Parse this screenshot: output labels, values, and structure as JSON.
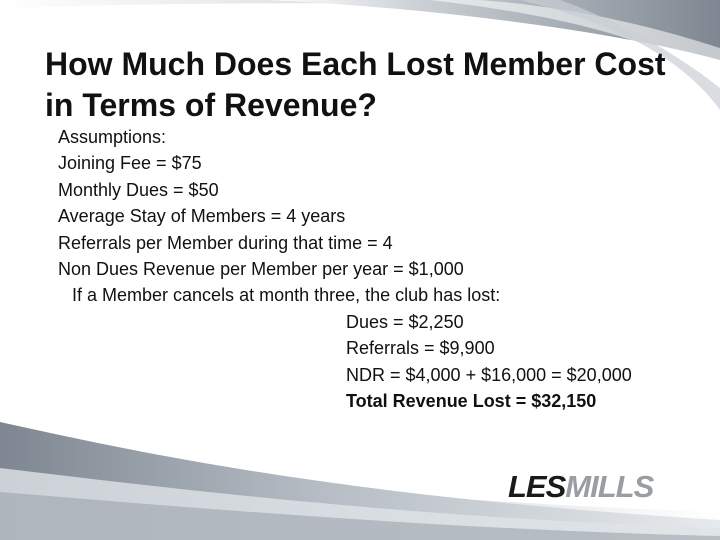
{
  "slide": {
    "title": "How Much Does Each Lost Member Cost in Terms of Revenue?",
    "assumptions_heading": "Assumptions:",
    "assumptions": [
      "Joining Fee = $75",
      "Monthly Dues = $50",
      "Average Stay of Members = 4 years",
      "Referrals per Member during that time = 4",
      "Non Dues Revenue per Member per year = $1,000"
    ],
    "scenario": "If a Member cancels at month three, the club has lost:",
    "losses": [
      "Dues = $2,250",
      "Referrals = $9,900",
      "NDR = $4,000 + $16,000 = $20,000"
    ],
    "total": "Total Revenue Lost = $32,150",
    "logo_text": "LESMILLS"
  },
  "colors": {
    "swoosh_dark": "#7e8791",
    "swoosh_light": "#c9ced4",
    "logo_dark": "#1a1a1a",
    "logo_gray": "#9a9ea3"
  }
}
